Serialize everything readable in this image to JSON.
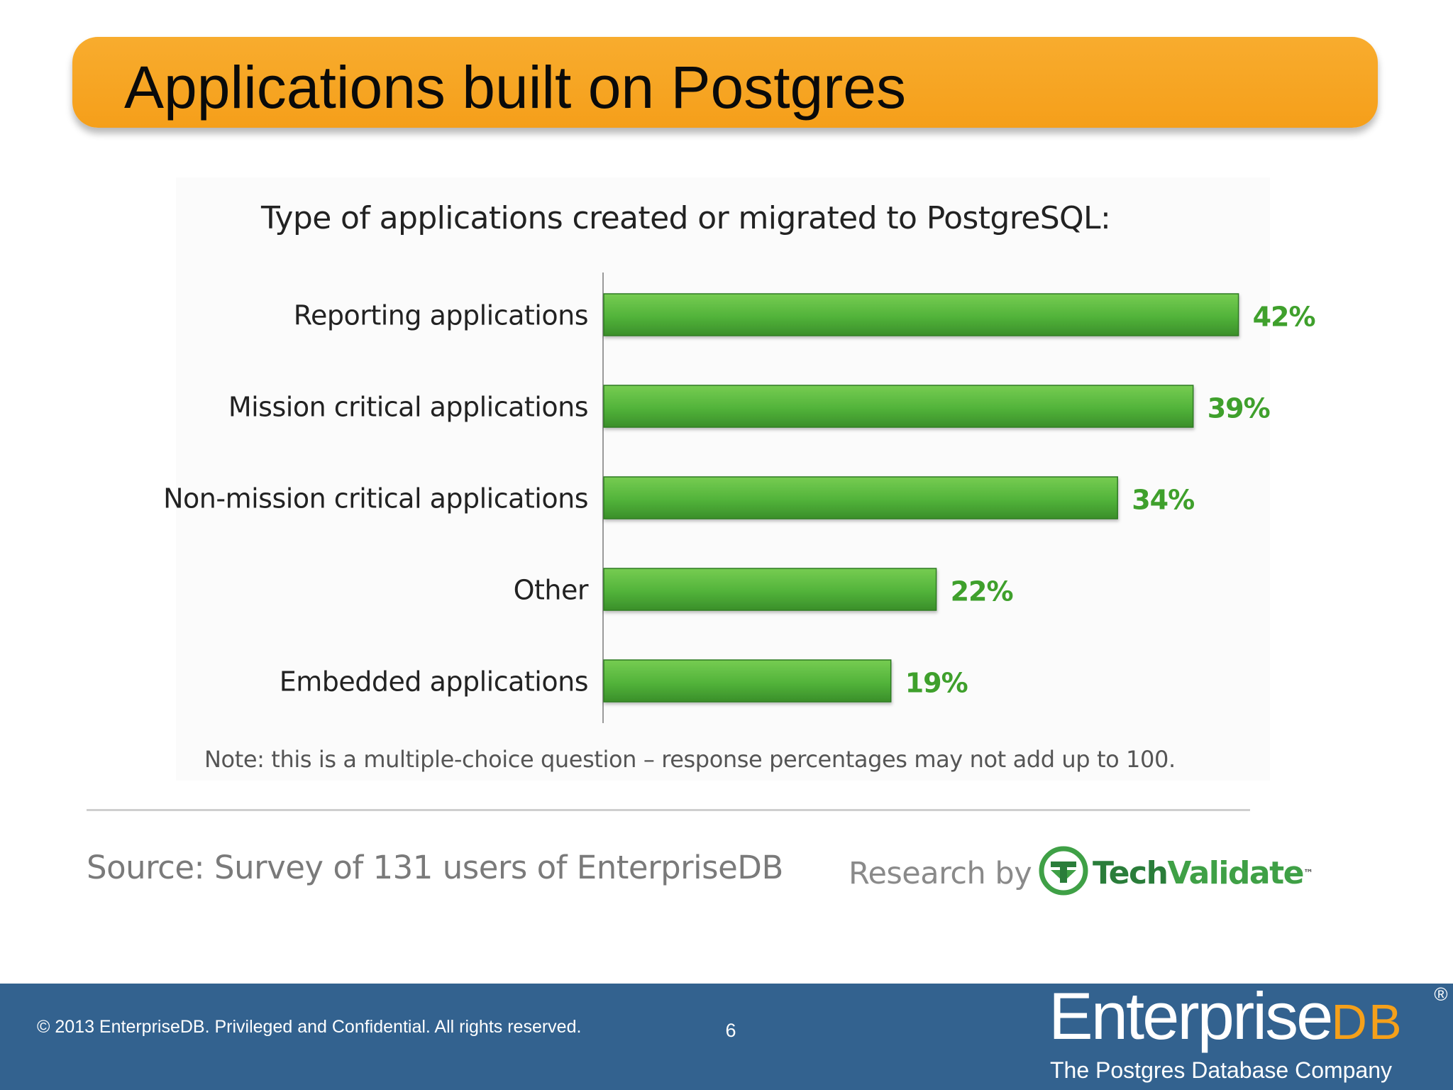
{
  "slide": {
    "title": "Applications built on Postgres",
    "note": "Note: this is a multiple-choice question – response percentages may not add up to 100.",
    "source": "Source:  Survey of 131 users of EnterpriseDB",
    "research_by": "Research by",
    "research_brand": {
      "part1": "Tech",
      "part2": "Validate",
      "mark": "™"
    }
  },
  "chart_data": {
    "type": "bar",
    "orientation": "horizontal",
    "title": "Type of applications created or migrated to PostgreSQL:",
    "categories": [
      "Reporting applications",
      "Mission critical applications",
      "Non-mission critical applications",
      "Other",
      "Embedded applications"
    ],
    "values": [
      42,
      39,
      34,
      22,
      19
    ],
    "value_labels": [
      "42%",
      "39%",
      "34%",
      "22%",
      "19%"
    ],
    "unit": "%",
    "xlim": [
      0,
      45
    ],
    "grid": false,
    "legend": "none",
    "bar_color": "#4caf35",
    "label_color": "#3fa02c"
  },
  "footer": {
    "copyright": "© 2013 EnterpriseDB. Privileged and Confidential.  All rights reserved.",
    "page_number": "6",
    "logo_text": "Enterprise",
    "logo_suffix": "DB",
    "logo_registered": "®",
    "tagline": "The Postgres Database Company",
    "background": "#33628f",
    "accent": "#f5a01a"
  },
  "colors": {
    "title_banner": "#f7a521",
    "title_text": "#0a0a0a"
  }
}
